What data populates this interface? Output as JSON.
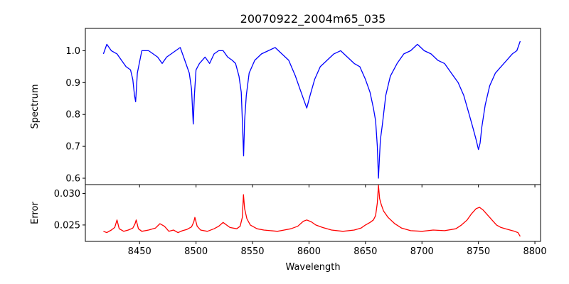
{
  "chart_data": [
    {
      "type": "line",
      "title": "20070922_2004m65_035",
      "xlabel": "",
      "ylabel": "Spectrum",
      "xlim": [
        8402,
        8805
      ],
      "ylim": [
        0.58,
        1.07
      ],
      "xticks": [
        8400,
        8450,
        8500,
        8550,
        8600,
        8650,
        8700,
        8750,
        8800
      ],
      "yticks": [
        0.6,
        0.7,
        0.8,
        0.9,
        1.0
      ],
      "ytick_labels": [
        "0.6",
        "0.7",
        "0.8",
        "0.9",
        "1.0"
      ],
      "grid": false,
      "series": [
        {
          "color": "#0000ff",
          "x": [
            8418,
            8421,
            8425,
            8430,
            8434,
            8438,
            8442,
            8444,
            8445.5,
            8446.5,
            8448,
            8452,
            8458,
            8462,
            8466,
            8470,
            8474,
            8478,
            8482,
            8486,
            8490,
            8494,
            8496,
            8497.5,
            8498.5,
            8500,
            8503,
            8508,
            8512,
            8516,
            8520,
            8524,
            8528,
            8532,
            8535,
            8538,
            8540,
            8541.2,
            8542.1,
            8543,
            8544.5,
            8547,
            8552,
            8558,
            8564,
            8570,
            8576,
            8582,
            8588,
            8592,
            8595,
            8598,
            8601,
            8605,
            8610,
            8616,
            8622,
            8628,
            8634,
            8640,
            8645,
            8650,
            8654,
            8657,
            8659,
            8660.5,
            8661.5,
            8662.3,
            8663.2,
            8665,
            8668,
            8672,
            8678,
            8684,
            8690,
            8696,
            8702,
            8708,
            8714,
            8720,
            8726,
            8732,
            8737,
            8741,
            8745,
            8748,
            8750,
            8751.5,
            8753,
            8756,
            8760,
            8765,
            8770,
            8775,
            8780,
            8784,
            8787
          ],
          "y": [
            0.99,
            1.02,
            1.0,
            0.99,
            0.97,
            0.95,
            0.94,
            0.91,
            0.86,
            0.84,
            0.93,
            1.0,
            1.0,
            0.99,
            0.98,
            0.96,
            0.98,
            0.99,
            1.0,
            1.01,
            0.97,
            0.93,
            0.88,
            0.77,
            0.86,
            0.94,
            0.96,
            0.98,
            0.96,
            0.99,
            1.0,
            1.0,
            0.98,
            0.97,
            0.96,
            0.92,
            0.87,
            0.76,
            0.67,
            0.78,
            0.86,
            0.93,
            0.97,
            0.99,
            1.0,
            1.01,
            0.99,
            0.97,
            0.92,
            0.88,
            0.85,
            0.82,
            0.86,
            0.91,
            0.95,
            0.97,
            0.99,
            1.0,
            0.98,
            0.96,
            0.95,
            0.91,
            0.87,
            0.82,
            0.78,
            0.7,
            0.6,
            0.66,
            0.72,
            0.77,
            0.86,
            0.92,
            0.96,
            0.99,
            1.0,
            1.02,
            1.0,
            0.99,
            0.97,
            0.96,
            0.93,
            0.9,
            0.86,
            0.81,
            0.76,
            0.72,
            0.69,
            0.71,
            0.76,
            0.83,
            0.89,
            0.93,
            0.95,
            0.97,
            0.99,
            1.0,
            1.03
          ]
        }
      ]
    },
    {
      "type": "line",
      "title": "",
      "xlabel": "Wavelength",
      "ylabel": "Error",
      "xlim": [
        8402,
        8805
      ],
      "ylim": [
        0.0224,
        0.0314
      ],
      "xticks": [
        8400,
        8450,
        8500,
        8550,
        8600,
        8650,
        8700,
        8750,
        8800
      ],
      "xtick_labels": [
        "8400",
        "8450",
        "8500",
        "8550",
        "8600",
        "8650",
        "8700",
        "8750",
        "8800"
      ],
      "yticks": [
        0.025,
        0.03
      ],
      "ytick_labels": [
        "0.025",
        "0.030"
      ],
      "grid": false,
      "series": [
        {
          "color": "#ff0000",
          "x": [
            8418,
            8421,
            8425,
            8428,
            8430,
            8432,
            8436,
            8440,
            8444,
            8446,
            8447,
            8449,
            8452,
            8458,
            8464,
            8468,
            8472,
            8476,
            8480,
            8484,
            8488,
            8492,
            8496,
            8498,
            8499,
            8501,
            8504,
            8510,
            8516,
            8520,
            8524,
            8530,
            8536,
            8539,
            8541,
            8542,
            8543,
            8545,
            8548,
            8554,
            8560,
            8566,
            8572,
            8578,
            8584,
            8590,
            8595,
            8598,
            8602,
            8606,
            8612,
            8620,
            8630,
            8640,
            8646,
            8650,
            8654,
            8657,
            8659,
            8660.5,
            8661.5,
            8662.5,
            8664,
            8666,
            8670,
            8676,
            8682,
            8690,
            8700,
            8710,
            8720,
            8730,
            8735,
            8740,
            8744,
            8748,
            8751,
            8754,
            8758,
            8762,
            8766,
            8770,
            8774,
            8778,
            8782,
            8785,
            8787
          ],
          "y": [
            0.024,
            0.0238,
            0.0242,
            0.0246,
            0.0258,
            0.0244,
            0.024,
            0.0242,
            0.0245,
            0.0252,
            0.0258,
            0.0244,
            0.024,
            0.0242,
            0.0245,
            0.0252,
            0.0248,
            0.024,
            0.0242,
            0.0238,
            0.0241,
            0.0243,
            0.0247,
            0.0255,
            0.0262,
            0.0248,
            0.0242,
            0.024,
            0.0244,
            0.0248,
            0.0254,
            0.0246,
            0.0244,
            0.0248,
            0.0262,
            0.0298,
            0.0276,
            0.026,
            0.025,
            0.0244,
            0.0242,
            0.0241,
            0.024,
            0.0242,
            0.0244,
            0.0248,
            0.0256,
            0.0258,
            0.0255,
            0.025,
            0.0246,
            0.0242,
            0.024,
            0.0242,
            0.0245,
            0.025,
            0.0254,
            0.0258,
            0.0265,
            0.0285,
            0.0313,
            0.0292,
            0.0282,
            0.0272,
            0.0262,
            0.0252,
            0.0245,
            0.0241,
            0.024,
            0.0242,
            0.0241,
            0.0244,
            0.025,
            0.0258,
            0.0268,
            0.0276,
            0.0278,
            0.0274,
            0.0266,
            0.0258,
            0.025,
            0.0246,
            0.0244,
            0.0242,
            0.024,
            0.0238,
            0.0232
          ]
        }
      ]
    }
  ]
}
